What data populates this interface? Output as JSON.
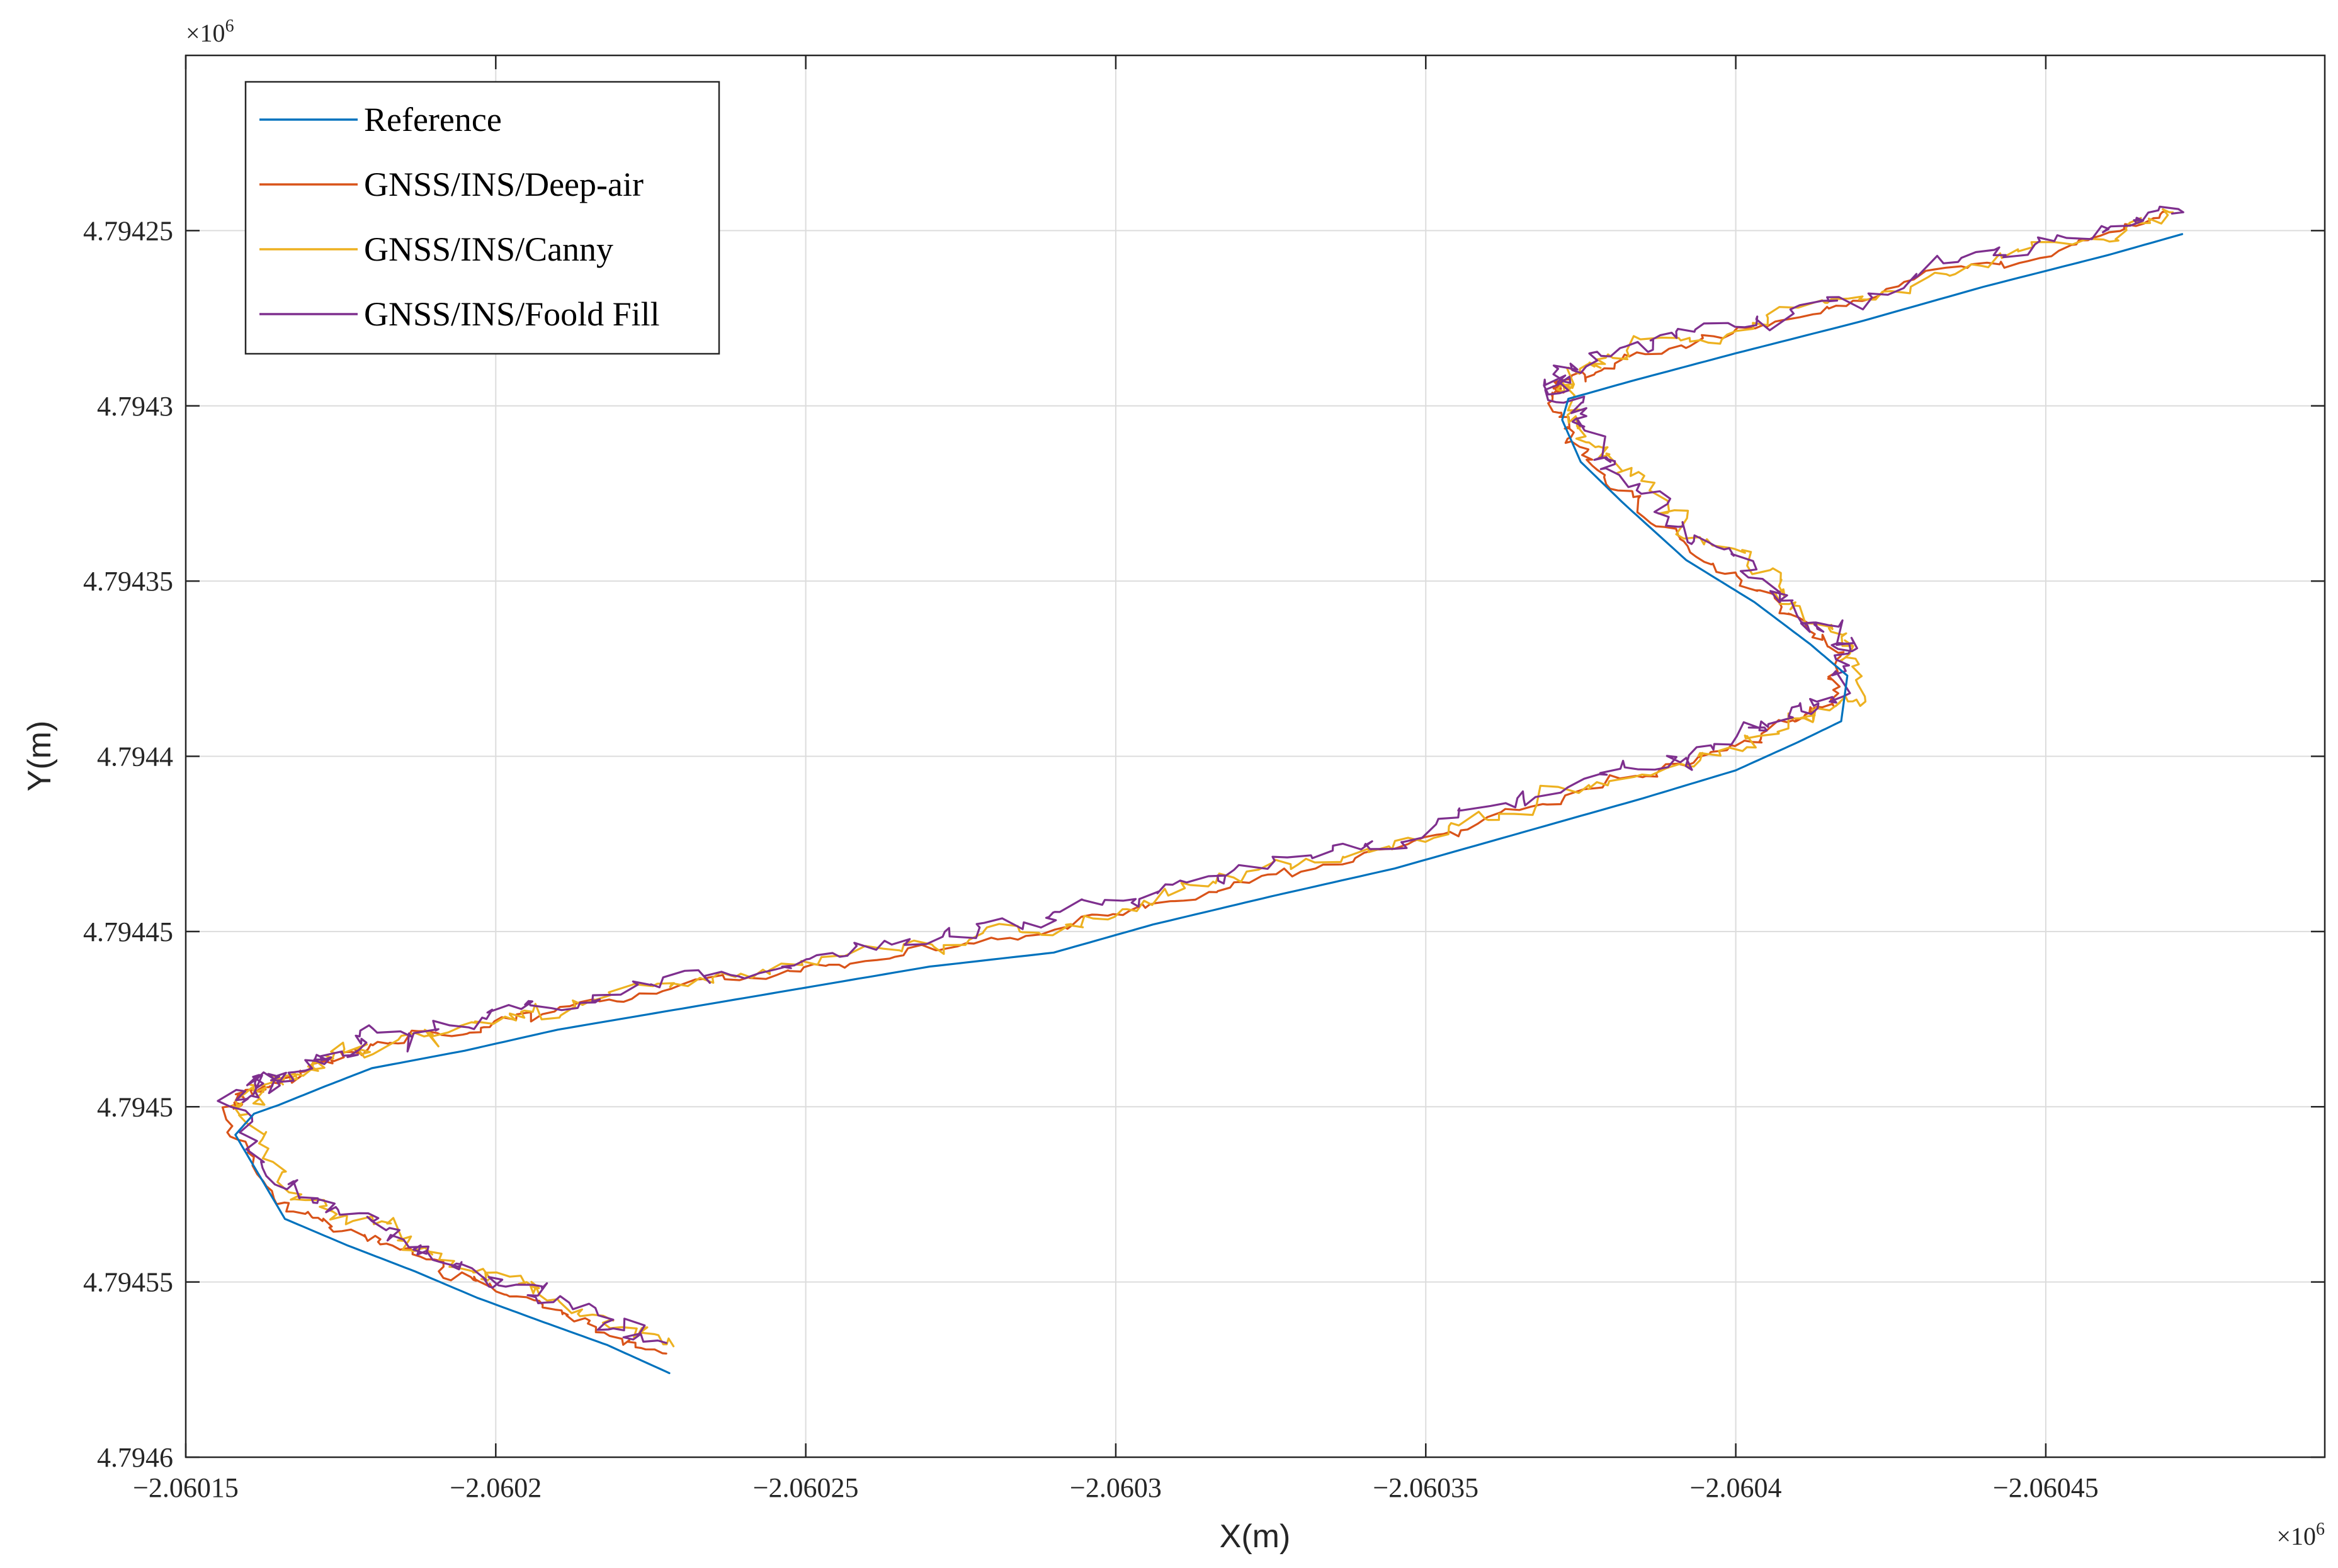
{
  "chart_data": {
    "type": "line",
    "title": "",
    "xlabel": "X(m)",
    "ylabel": "Y(m)",
    "x_exponent_label": "×10",
    "x_exponent_power": "6",
    "y_exponent_label": "×10",
    "y_exponent_power": "6",
    "xlim": [
      -2.06015,
      -2.060495
    ],
    "ylim": [
      4.7946,
      4.7942
    ],
    "x_reversed": true,
    "y_reversed": true,
    "grid": true,
    "legend_position": "top-left",
    "x_ticks": [
      -2.06015,
      -2.0602,
      -2.06025,
      -2.0603,
      -2.06035,
      -2.0604,
      -2.06045
    ],
    "x_tick_labels": [
      "−2.06015",
      "−2.0602",
      "−2.06025",
      "−2.0603",
      "−2.06035",
      "−2.0604",
      "−2.06045"
    ],
    "y_ticks": [
      4.79425,
      4.7943,
      4.79435,
      4.7944,
      4.79445,
      4.7945,
      4.79455,
      4.7946
    ],
    "y_tick_labels": [
      "4.79425",
      "4.7943",
      "4.79435",
      "4.7944",
      "4.79445",
      "4.7945",
      "4.79455",
      "4.7946"
    ],
    "reference_path": {
      "x": [
        -2.060228,
        -2.060218,
        -2.060207,
        -2.060197,
        -2.060187,
        -2.060176,
        -2.060166,
        -2.060158,
        -2.060161,
        -2.060165,
        -2.060172,
        -2.06018,
        -2.060195,
        -2.06021,
        -2.06023,
        -2.06025,
        -2.06027,
        -2.06029,
        -2.060306,
        -2.060325,
        -2.060345,
        -2.060365,
        -2.060385,
        -2.0604,
        -2.06041,
        -2.060417,
        -2.060418,
        -2.060412,
        -2.060403,
        -2.060392,
        -2.060382,
        -2.060375,
        -2.060372,
        -2.060373,
        -2.060383,
        -2.0604,
        -2.06042,
        -2.06044,
        -2.06046,
        -2.060472
      ],
      "y": [
        4.794576,
        4.794568,
        4.794561,
        4.7945545,
        4.794547,
        4.7945395,
        4.794532,
        4.794508,
        4.794502,
        4.7944995,
        4.7944945,
        4.794489,
        4.794484,
        4.794478,
        4.794472,
        4.794466,
        4.79446,
        4.794456,
        4.794448,
        4.79444,
        4.794432,
        4.794422,
        4.794412,
        4.794404,
        4.794396,
        4.79439,
        4.794377,
        4.794368,
        4.794356,
        4.794344,
        4.794328,
        4.794316,
        4.794304,
        4.794298,
        4.794293,
        4.794285,
        4.794276,
        4.794266,
        4.794257,
        4.794251
      ]
    },
    "series": [
      {
        "name": "Reference",
        "color": "#0072BD",
        "dx": 0,
        "dy": 0,
        "noise": 0
      },
      {
        "name": "GNSS/INS/Deep-air",
        "color": "#D95319",
        "dx": 1.5e-06,
        "dy": -5.5e-06,
        "noise": 2e-06
      },
      {
        "name": "GNSS/INS/Canny",
        "color": "#EDB120",
        "dx": -1e-06,
        "dy": -7.5e-06,
        "noise": 3.5e-06
      },
      {
        "name": "GNSS/INS/Foold Fill",
        "color": "#7E2F8E",
        "dx": 5e-07,
        "dy": -8.5e-06,
        "noise": 4e-06
      }
    ]
  }
}
